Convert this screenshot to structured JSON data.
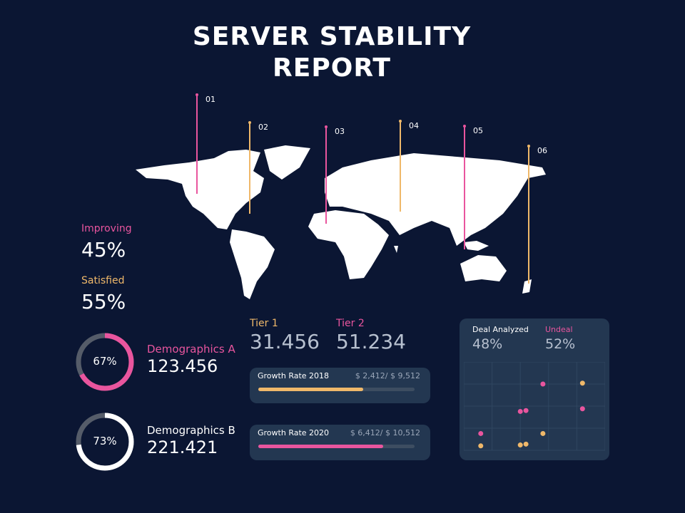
{
  "title": [
    "SERVER STABILITY",
    "REPORT"
  ],
  "pins": [
    {
      "label": "01",
      "color": "#e9559e"
    },
    {
      "label": "02",
      "color": "#efb86a"
    },
    {
      "label": "03",
      "color": "#e9559e"
    },
    {
      "label": "04",
      "color": "#efb86a"
    },
    {
      "label": "05",
      "color": "#e9559e"
    },
    {
      "label": "06",
      "color": "#efb86a"
    }
  ],
  "stats": {
    "improving": {
      "label": "Improving",
      "value": "45%"
    },
    "satisfied": {
      "label": "Satisfied",
      "value": "55%"
    }
  },
  "donuts": [
    {
      "percent": 67,
      "text": "67%",
      "label": "Demographics A",
      "value": "123.456",
      "color": "#e9559e"
    },
    {
      "percent": 73,
      "text": "73%",
      "label": "Demographics B",
      "value": "221.421",
      "color": "#ffffff"
    }
  ],
  "tiers": [
    {
      "label": "Tier 1",
      "value": "31.456"
    },
    {
      "label": "Tier 2",
      "value": "51.234"
    }
  ],
  "growth": [
    {
      "label": "Growth Rate 2018",
      "amount": "$ 2,412/ $ 9,512",
      "progress": 0.67,
      "color": "#efb86a"
    },
    {
      "label": "Growth Rate 2020",
      "amount": "$ 6,412/ $ 10,512",
      "progress": 0.8,
      "color": "#e9559e"
    }
  ],
  "deal": {
    "analyzed_label": "Deal Analyzed",
    "analyzed_value": "48%",
    "undeal_label": "Undeal",
    "undeal_value": "52%"
  },
  "chart_data": {
    "type": "scatter",
    "grid": true,
    "xlim": [
      0,
      10
    ],
    "ylim": [
      0,
      10
    ],
    "series": [
      {
        "color": "#e9559e",
        "points": [
          [
            1.2,
            1.9
          ],
          [
            4.0,
            4.4
          ],
          [
            4.4,
            4.5
          ],
          [
            5.6,
            7.5
          ],
          [
            8.4,
            4.7
          ]
        ]
      },
      {
        "color": "#efb86a",
        "points": [
          [
            1.2,
            0.5
          ],
          [
            4.0,
            0.6
          ],
          [
            4.4,
            0.7
          ],
          [
            5.6,
            1.9
          ],
          [
            8.4,
            7.6
          ]
        ]
      }
    ]
  }
}
